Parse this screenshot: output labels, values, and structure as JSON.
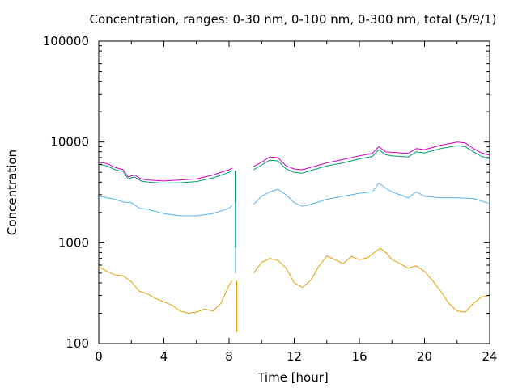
{
  "chart_data": {
    "type": "line",
    "title": "Concentration, ranges: 0-30 nm, 0-100 nm, 0-300 nm, total (5/9/1)",
    "xlabel": "Time [hour]",
    "ylabel": "Concentration",
    "xlim": [
      0,
      24
    ],
    "ylim": [
      100,
      100000
    ],
    "yscale": "log",
    "grid": false,
    "x_ticks": [
      "0",
      "4",
      "8",
      "12",
      "16",
      "20",
      "24"
    ],
    "y_ticks": [
      "100",
      "1000",
      "10000",
      "100000"
    ],
    "series": [
      {
        "color": "#cc00cc",
        "segments": [
          [
            [
              0,
              6300
            ],
            [
              0.5,
              6100
            ],
            [
              1,
              5600
            ],
            [
              1.5,
              5300
            ],
            [
              1.8,
              4500
            ],
            [
              2.2,
              4700
            ],
            [
              2.6,
              4300
            ],
            [
              3,
              4200
            ],
            [
              4,
              4100
            ],
            [
              5,
              4200
            ],
            [
              6,
              4300
            ],
            [
              7,
              4700
            ],
            [
              8,
              5300
            ],
            [
              8.2,
              5500
            ]
          ],
          [
            [
              9.5,
              5700
            ],
            [
              10,
              6300
            ],
            [
              10.5,
              7100
            ],
            [
              11,
              7000
            ],
            [
              11.5,
              5800
            ],
            [
              12,
              5400
            ],
            [
              12.5,
              5300
            ],
            [
              13,
              5600
            ],
            [
              14,
              6200
            ],
            [
              15,
              6700
            ],
            [
              16,
              7300
            ],
            [
              16.8,
              7700
            ],
            [
              17.2,
              9000
            ],
            [
              17.6,
              8000
            ],
            [
              18,
              7900
            ],
            [
              19,
              7700
            ],
            [
              19.5,
              8600
            ],
            [
              20,
              8400
            ],
            [
              21,
              9300
            ],
            [
              22,
              10000
            ],
            [
              22.5,
              9800
            ],
            [
              23,
              8600
            ],
            [
              23.5,
              7800
            ],
            [
              24,
              7400
            ]
          ]
        ]
      },
      {
        "color": "#009e73",
        "segments": [
          [
            [
              0,
              6000
            ],
            [
              0.5,
              5800
            ],
            [
              1,
              5300
            ],
            [
              1.5,
              5100
            ],
            [
              1.8,
              4300
            ],
            [
              2.2,
              4500
            ],
            [
              2.6,
              4100
            ],
            [
              3,
              4000
            ],
            [
              4,
              3900
            ],
            [
              5,
              3950
            ],
            [
              6,
              4050
            ],
            [
              7,
              4400
            ],
            [
              8,
              5000
            ],
            [
              8.2,
              5200
            ]
          ],
          [
            [
              9.5,
              5300
            ],
            [
              10,
              5900
            ],
            [
              10.5,
              6600
            ],
            [
              11,
              6500
            ],
            [
              11.5,
              5400
            ],
            [
              12,
              5000
            ],
            [
              12.5,
              4900
            ],
            [
              13,
              5200
            ],
            [
              14,
              5800
            ],
            [
              15,
              6200
            ],
            [
              16,
              6800
            ],
            [
              16.8,
              7200
            ],
            [
              17.2,
              8400
            ],
            [
              17.6,
              7500
            ],
            [
              18,
              7300
            ],
            [
              19,
              7100
            ],
            [
              19.5,
              8000
            ],
            [
              20,
              7800
            ],
            [
              21,
              8600
            ],
            [
              22,
              9200
            ],
            [
              22.5,
              9000
            ],
            [
              23,
              8000
            ],
            [
              23.5,
              7200
            ],
            [
              24,
              6800
            ]
          ]
        ]
      },
      {
        "color": "#56b4e9",
        "segments": [
          [
            [
              0,
              2900
            ],
            [
              0.5,
              2800
            ],
            [
              1,
              2700
            ],
            [
              1.5,
              2550
            ],
            [
              2,
              2500
            ],
            [
              2.5,
              2200
            ],
            [
              3,
              2150
            ],
            [
              4,
              1950
            ],
            [
              5,
              1850
            ],
            [
              6,
              1850
            ],
            [
              7,
              1950
            ],
            [
              8,
              2200
            ],
            [
              8.2,
              2350
            ]
          ],
          [
            [
              9.5,
              2400
            ],
            [
              10,
              2900
            ],
            [
              10.5,
              3200
            ],
            [
              11,
              3400
            ],
            [
              11.5,
              3000
            ],
            [
              12,
              2500
            ],
            [
              12.5,
              2300
            ],
            [
              13,
              2400
            ],
            [
              14,
              2700
            ],
            [
              15,
              2900
            ],
            [
              16,
              3100
            ],
            [
              16.8,
              3200
            ],
            [
              17.2,
              3900
            ],
            [
              17.6,
              3500
            ],
            [
              18,
              3200
            ],
            [
              19,
              2800
            ],
            [
              19.5,
              3200
            ],
            [
              20,
              2900
            ],
            [
              21,
              2800
            ],
            [
              22,
              2800
            ],
            [
              23,
              2750
            ],
            [
              24,
              2450
            ]
          ]
        ]
      },
      {
        "color": "#e69f00",
        "segments": [
          [
            [
              0,
              580
            ],
            [
              0.5,
              520
            ],
            [
              1,
              480
            ],
            [
              1.5,
              470
            ],
            [
              2,
              410
            ],
            [
              2.5,
              330
            ],
            [
              3,
              310
            ],
            [
              3.5,
              280
            ],
            [
              4,
              260
            ],
            [
              4.5,
              240
            ],
            [
              5,
              210
            ],
            [
              5.5,
              200
            ],
            [
              6,
              205
            ],
            [
              6.5,
              220
            ],
            [
              7,
              210
            ],
            [
              7.5,
              250
            ],
            [
              8,
              380
            ],
            [
              8.2,
              420
            ]
          ],
          [
            [
              9.5,
              500
            ],
            [
              10,
              640
            ],
            [
              10.5,
              700
            ],
            [
              11,
              670
            ],
            [
              11.5,
              560
            ],
            [
              12,
              400
            ],
            [
              12.5,
              360
            ],
            [
              13,
              420
            ],
            [
              13.5,
              580
            ],
            [
              14,
              740
            ],
            [
              14.5,
              680
            ],
            [
              15,
              620
            ],
            [
              15.5,
              730
            ],
            [
              16,
              680
            ],
            [
              16.5,
              710
            ],
            [
              17,
              820
            ],
            [
              17.3,
              880
            ],
            [
              17.7,
              780
            ],
            [
              18,
              680
            ],
            [
              18.5,
              620
            ],
            [
              19,
              560
            ],
            [
              19.5,
              590
            ],
            [
              20,
              520
            ],
            [
              20.5,
              420
            ],
            [
              21,
              330
            ],
            [
              21.5,
              250
            ],
            [
              22,
              210
            ],
            [
              22.5,
              205
            ],
            [
              23,
              250
            ],
            [
              23.5,
              290
            ],
            [
              24,
              300
            ]
          ]
        ]
      }
    ],
    "gap_drop": {
      "x": 8.4,
      "segments": [
        {
          "color": "#009e73",
          "y_top": 5200,
          "y_bottom": 900
        },
        {
          "color": "#56b4e9",
          "y_top": 2500,
          "y_bottom": 500
        },
        {
          "color": "#e69f00",
          "y_top": 420,
          "y_bottom": 130
        }
      ]
    }
  }
}
